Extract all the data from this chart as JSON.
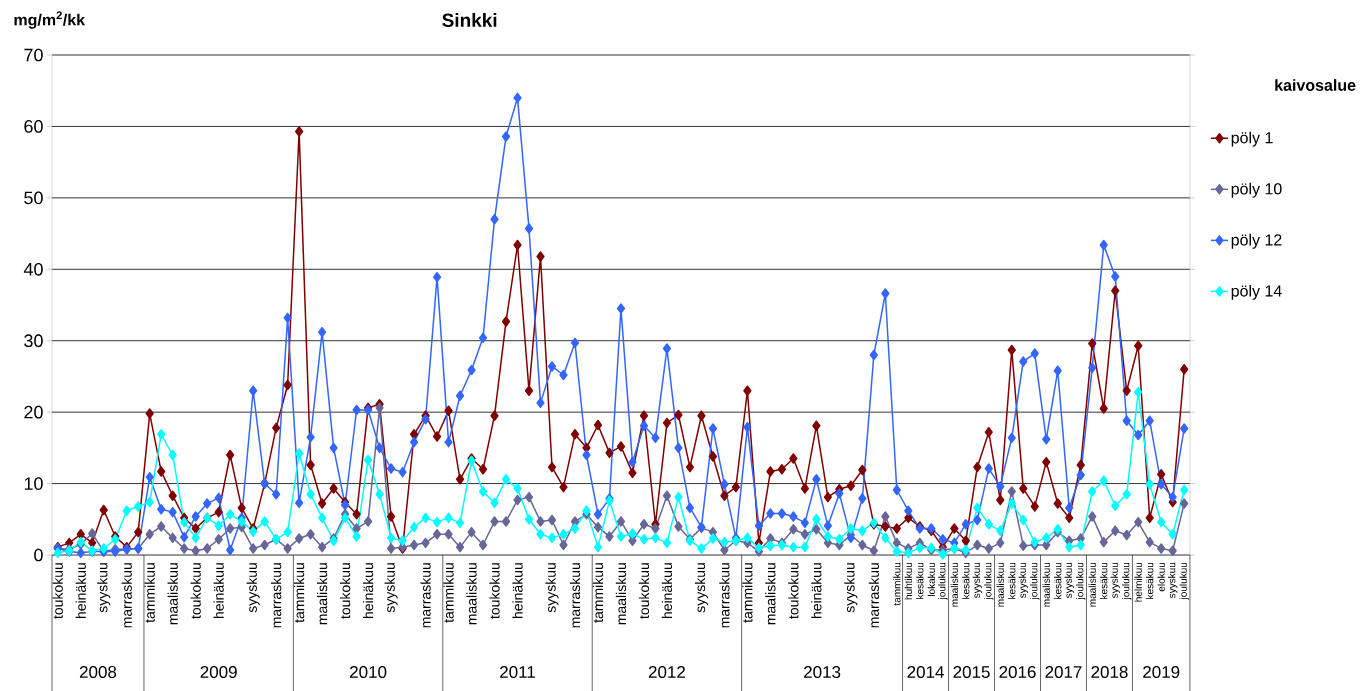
{
  "chart_data": {
    "type": "line",
    "title": "Sinkki",
    "ylabel": "mg/m$^{2}$/kk",
    "legend_title": "kaivosalue",
    "categories": [
      "toukokuu",
      null,
      "heinäkuu",
      null,
      "syyskuu",
      null,
      "marraskuu",
      null,
      "tammikuu",
      null,
      "maaliskuu",
      null,
      "toukokuu",
      null,
      "heinäkuu",
      null,
      null,
      "syyskuu",
      null,
      "marraskuu",
      null,
      "tammikuu",
      null,
      "maaliskuu",
      null,
      "toukokuu",
      null,
      "heinäkuu",
      null,
      "syyskuu",
      null,
      null,
      "marraskuu",
      null,
      "tammikuu",
      null,
      "maaliskuu",
      null,
      "toukokuu",
      null,
      "heinäkuu",
      null,
      null,
      "syyskuu",
      null,
      "marraskuu",
      null,
      "tammikuu",
      null,
      "maaliskuu",
      null,
      "toukokuu",
      null,
      "heinäkuu",
      null,
      null,
      "syyskuu",
      null,
      "marraskuu",
      null,
      "tammikuu",
      null,
      "maaliskuu",
      null,
      "toukokuu",
      null,
      "heinäkuu",
      null,
      null,
      "syyskuu",
      null,
      "marraskuu",
      null,
      "tammikuu",
      "huhtikuu",
      "kesäkuu",
      "lokakuu",
      "joulukuu",
      "maaliskuu",
      "kesäkuu",
      "syyskuu",
      "joulukuu",
      "maaliskuu",
      "kesäkuu",
      "syyskuu",
      "joulukuu",
      "maaliskuu",
      "kesäkuu",
      "syyskuu",
      "joulukuu",
      "maaliskuu",
      "kesäkuu",
      "syyskuu",
      "joulukuu",
      "helmikuu",
      "kesäkuu",
      "elokuu",
      "syyskuu",
      "joulukuu"
    ],
    "series": [
      {
        "name": "pöly 1",
        "color": "#800000",
        "values": [
          1.1,
          1.7,
          2.9,
          1.7,
          6.3,
          2.6,
          1.1,
          3.2,
          19.8,
          11.7,
          8.3,
          5.2,
          3.7,
          5.2,
          6.0,
          14.0,
          6.6,
          3.7,
          10.0,
          17.8,
          23.8,
          59.3,
          12.6,
          7.2,
          9.3,
          7.4,
          5.7,
          20.6,
          21.1,
          5.4,
          0.9,
          16.9,
          19.5,
          16.6,
          20.2,
          10.6,
          13.5,
          12.0,
          19.5,
          32.7,
          43.4,
          23.0,
          41.8,
          12.3,
          9.5,
          16.9,
          15.0,
          18.2,
          14.3,
          15.2,
          11.5,
          19.5,
          4.3,
          18.5,
          19.6,
          12.3,
          19.5,
          13.8,
          8.3,
          9.5,
          23.0,
          1.7,
          11.7,
          12.0,
          13.5,
          9.3,
          18.1,
          8.1,
          9.2,
          9.7,
          11.9,
          4.3,
          4.0,
          3.7,
          5.2,
          4.0,
          3.4,
          1.1,
          3.7,
          2.0,
          12.3,
          17.2,
          7.7,
          28.7,
          9.3,
          6.8,
          13.0,
          7.2,
          5.2,
          12.6,
          29.6,
          20.5,
          37.0,
          23.0,
          29.3,
          5.2,
          11.3,
          7.4,
          26.0
        ]
      },
      {
        "name": "pöly 10",
        "color": "#666699",
        "values": [
          0.9,
          0.8,
          1.5,
          3.0,
          0.5,
          0.8,
          0.8,
          0.9,
          2.9,
          4.0,
          2.4,
          0.9,
          0.6,
          0.9,
          2.2,
          3.7,
          3.9,
          0.9,
          1.4,
          2.2,
          0.9,
          2.3,
          2.9,
          1.1,
          2.3,
          5.7,
          3.7,
          4.7,
          20.6,
          0.9,
          1.1,
          1.4,
          1.7,
          2.9,
          2.9,
          1.1,
          3.2,
          1.4,
          4.7,
          4.7,
          7.7,
          8.1,
          4.7,
          4.9,
          1.4,
          4.7,
          5.7,
          3.9,
          2.6,
          4.7,
          2.0,
          4.3,
          3.7,
          8.3,
          4.0,
          2.2,
          3.8,
          3.2,
          0.7,
          2.0,
          1.7,
          0.5,
          2.3,
          1.7,
          3.6,
          2.9,
          3.6,
          1.7,
          1.4,
          2.8,
          1.4,
          0.6,
          5.4,
          1.7,
          0.9,
          1.7,
          0.7,
          0.7,
          0.9,
          0.3,
          1.4,
          0.9,
          1.7,
          8.9,
          1.3,
          1.4,
          1.4,
          3.2,
          2.0,
          2.3,
          5.4,
          1.8,
          3.4,
          2.8,
          4.6,
          1.8,
          0.9,
          0.6,
          7.2
        ]
      },
      {
        "name": "pöly 12",
        "color": "#3366ff",
        "values": [
          0.9,
          0.5,
          0.3,
          0.5,
          0.5,
          0.5,
          0.8,
          0.9,
          10.9,
          6.4,
          6.0,
          2.5,
          5.4,
          7.2,
          8.0,
          0.7,
          5.2,
          23.0,
          10.0,
          8.5,
          33.2,
          7.3,
          16.5,
          31.2,
          15.0,
          7.0,
          20.3,
          20.3,
          15.0,
          12.1,
          11.6,
          15.8,
          19.0,
          38.9,
          15.8,
          22.3,
          25.9,
          30.4,
          47.0,
          58.6,
          64.0,
          45.7,
          21.3,
          26.4,
          25.2,
          29.7,
          14.0,
          5.7,
          7.9,
          34.5,
          13.0,
          18.1,
          16.4,
          28.9,
          15.0,
          6.6,
          3.9,
          17.7,
          9.9,
          2.4,
          17.9,
          4.1,
          5.8,
          5.8,
          5.4,
          4.5,
          10.6,
          4.1,
          8.6,
          2.4,
          7.9,
          28.0,
          36.6,
          9.1,
          6.2,
          3.7,
          3.7,
          2.2,
          1.7,
          4.3,
          4.9,
          12.1,
          9.6,
          16.4,
          27.1,
          28.2,
          16.2,
          25.8,
          6.6,
          11.2,
          26.2,
          43.4,
          39.0,
          18.8,
          16.8,
          18.8,
          9.9,
          8.1,
          17.7
        ]
      },
      {
        "name": "pöly 14",
        "color": "#00ffff",
        "values": [
          0.3,
          0.6,
          1.8,
          0.6,
          0.9,
          2.2,
          6.2,
          6.8,
          7.4,
          16.9,
          14.0,
          4.6,
          2.4,
          5.2,
          4.1,
          5.7,
          4.7,
          3.3,
          4.7,
          2.2,
          3.2,
          14.2,
          8.5,
          5.2,
          2.0,
          5.2,
          2.6,
          13.3,
          8.5,
          2.4,
          2.0,
          3.9,
          5.2,
          4.6,
          5.2,
          4.5,
          13.2,
          8.9,
          7.3,
          10.6,
          9.3,
          5.0,
          2.9,
          2.4,
          2.9,
          3.7,
          6.2,
          1.1,
          7.6,
          2.6,
          3.0,
          2.2,
          2.4,
          1.7,
          8.1,
          2.0,
          0.9,
          2.3,
          1.8,
          2.0,
          2.4,
          1.0,
          1.3,
          1.4,
          1.1,
          1.1,
          5.0,
          2.6,
          2.2,
          3.7,
          3.4,
          4.5,
          2.4,
          0.5,
          0.3,
          1.0,
          1.0,
          0.1,
          0.9,
          0.7,
          6.6,
          4.3,
          3.4,
          7.2,
          4.9,
          1.8,
          2.4,
          3.6,
          1.1,
          1.4,
          8.9,
          10.4,
          6.9,
          8.5,
          22.8,
          9.9,
          4.6,
          2.9,
          9.1
        ]
      }
    ],
    "ylim": [
      0,
      70
    ],
    "yticks": [
      0,
      10,
      20,
      30,
      40,
      50,
      60,
      70
    ],
    "grid": "y",
    "legend": "right",
    "marker": "diamond",
    "line_style": "solid",
    "annotations": [
      "2008",
      "2009",
      "2010",
      "2011",
      "2012",
      "2013",
      "2014",
      "2015",
      "2016",
      "2017",
      "2018",
      "2019"
    ]
  }
}
